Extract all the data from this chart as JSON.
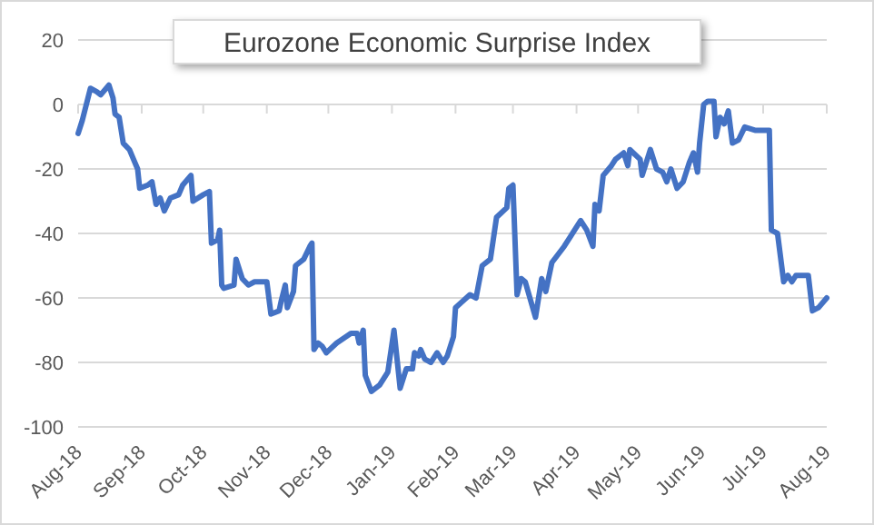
{
  "chart_data": {
    "type": "line",
    "title": "Eurozone Economic Surprise Index",
    "grid": "y",
    "line_style": "solid",
    "x": [
      "2018-08-01",
      "2018-08-03",
      "2018-08-07",
      "2018-08-10",
      "2018-08-12",
      "2018-08-16",
      "2018-08-18",
      "2018-08-19",
      "2018-08-21",
      "2018-08-23",
      "2018-08-26",
      "2018-08-28",
      "2018-08-30",
      "2018-08-31",
      "2018-09-04",
      "2018-09-06",
      "2018-09-08",
      "2018-09-10",
      "2018-09-12",
      "2018-09-15",
      "2018-09-19",
      "2018-09-21",
      "2018-09-25",
      "2018-09-26",
      "2018-10-01",
      "2018-10-04",
      "2018-10-05",
      "2018-10-08",
      "2018-10-09",
      "2018-10-10",
      "2018-10-11",
      "2018-10-16",
      "2018-10-17",
      "2018-10-20",
      "2018-10-23",
      "2018-10-26",
      "2018-11-01",
      "2018-11-03",
      "2018-11-07",
      "2018-11-08",
      "2018-11-10",
      "2018-11-11",
      "2018-11-14",
      "2018-11-15",
      "2018-11-19",
      "2018-11-22",
      "2018-11-23",
      "2018-11-24",
      "2018-11-26",
      "2018-11-28",
      "2018-11-30",
      "2018-12-05",
      "2018-12-12",
      "2018-12-15",
      "2018-12-16",
      "2018-12-18",
      "2018-12-19",
      "2018-12-22",
      "2018-12-26",
      "2018-12-30",
      "2019-01-02",
      "2019-01-05",
      "2019-01-08",
      "2019-01-11",
      "2019-01-12",
      "2019-01-14",
      "2019-01-15",
      "2019-01-17",
      "2019-01-20",
      "2019-01-23",
      "2019-01-26",
      "2019-01-28",
      "2019-01-31",
      "2019-02-01",
      "2019-02-08",
      "2019-02-11",
      "2019-02-14",
      "2019-02-18",
      "2019-02-21",
      "2019-02-26",
      "2019-02-27",
      "2019-03-01",
      "2019-03-03",
      "2019-03-05",
      "2019-03-07",
      "2019-03-12",
      "2019-03-15",
      "2019-03-17",
      "2019-03-20",
      "2019-03-26",
      "2019-03-29",
      "2019-04-03",
      "2019-04-06",
      "2019-04-09",
      "2019-04-10",
      "2019-04-12",
      "2019-04-14",
      "2019-04-18",
      "2019-04-20",
      "2019-04-24",
      "2019-04-26",
      "2019-04-27",
      "2019-05-02",
      "2019-05-03",
      "2019-05-07",
      "2019-05-10",
      "2019-05-13",
      "2019-05-15",
      "2019-05-17",
      "2019-05-20",
      "2019-05-23",
      "2019-05-26",
      "2019-05-28",
      "2019-05-30",
      "2019-05-31",
      "2019-06-02",
      "2019-06-04",
      "2019-06-07",
      "2019-06-08",
      "2019-06-10",
      "2019-06-12",
      "2019-06-14",
      "2019-06-16",
      "2019-06-19",
      "2019-06-22",
      "2019-06-27",
      "2019-07-02",
      "2019-07-04",
      "2019-07-05",
      "2019-07-08",
      "2019-07-11",
      "2019-07-13",
      "2019-07-15",
      "2019-07-17",
      "2019-07-23",
      "2019-07-25",
      "2019-07-28",
      "2019-08-01"
    ],
    "series": [
      {
        "color": "#4472c4",
        "values": [
          -9,
          -5,
          5,
          4,
          3,
          6,
          2,
          -3,
          -4,
          -12,
          -14,
          -17,
          -20,
          -26,
          -25,
          -24,
          -31,
          -29,
          -33,
          -29,
          -28,
          -25,
          -22,
          -30,
          -28,
          -27,
          -43,
          -42,
          -39,
          -56,
          -57,
          -56,
          -48,
          -54,
          -56,
          -55,
          -55,
          -65,
          -64,
          -61,
          -56,
          -63,
          -58,
          -50,
          -48,
          -44,
          -43,
          -76,
          -74,
          -75,
          -77,
          -74,
          -71,
          -71,
          -74,
          -70,
          -84,
          -89,
          -87,
          -83,
          -70,
          -88,
          -82,
          -82,
          -77,
          -78,
          -76,
          -79,
          -80,
          -77,
          -80,
          -78,
          -72,
          -63,
          -59,
          -60,
          -50,
          -48,
          -35,
          -32,
          -26,
          -25,
          -59,
          -54,
          -55,
          -66,
          -54,
          -58,
          -49,
          -44,
          -41,
          -36,
          -39,
          -44,
          -31,
          -33,
          -22,
          -19,
          -17,
          -15,
          -19,
          -14,
          -17,
          -22,
          -14,
          -20,
          -21,
          -24,
          -20,
          -26,
          -24,
          -18,
          -15,
          -21,
          -12,
          0,
          1,
          1,
          -10,
          -4,
          -6,
          -2,
          -12,
          -11,
          -7,
          -8,
          -8,
          -8,
          -39,
          -40,
          -55,
          -53,
          -55,
          -53,
          -53,
          -64,
          -63,
          -60
        ]
      }
    ],
    "xlim": [
      "2018-08-01",
      "2019-08-01"
    ],
    "xticks": [
      {
        "value": "2018-08-01",
        "label": "Aug-18"
      },
      {
        "value": "2018-09-01",
        "label": "Sep-18"
      },
      {
        "value": "2018-10-01",
        "label": "Oct-18"
      },
      {
        "value": "2018-11-01",
        "label": "Nov-18"
      },
      {
        "value": "2018-12-01",
        "label": "Dec-18"
      },
      {
        "value": "2019-01-01",
        "label": "Jan-19"
      },
      {
        "value": "2019-02-01",
        "label": "Feb-19"
      },
      {
        "value": "2019-03-01",
        "label": "Mar-19"
      },
      {
        "value": "2019-04-01",
        "label": "Apr-19"
      },
      {
        "value": "2019-05-01",
        "label": "May-19"
      },
      {
        "value": "2019-06-01",
        "label": "Jun-19"
      },
      {
        "value": "2019-07-01",
        "label": "Jul-19"
      },
      {
        "value": "2019-08-01",
        "label": "Aug-19"
      }
    ],
    "ylim": [
      -100,
      20
    ],
    "yticks": [
      -100,
      -80,
      -60,
      -40,
      -20,
      0,
      20
    ]
  }
}
